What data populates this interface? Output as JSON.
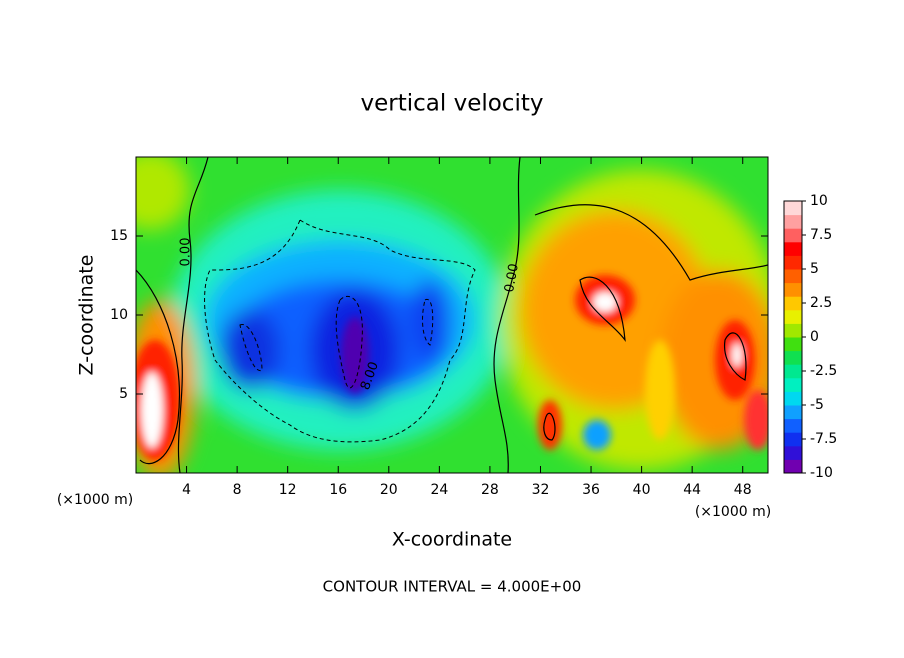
{
  "chart_data": {
    "type": "contour",
    "title": "vertical velocity",
    "x_label": "X-coordinate",
    "y_label": "Z-coordinate",
    "x_unit_labels": [
      "(×1000 m)",
      "(×1000 m)"
    ],
    "footer": "CONTOUR INTERVAL = 4.000E+00",
    "contour_labels": [
      "0.00",
      "0.00",
      "8.00"
    ],
    "xlim": [
      0,
      50
    ],
    "xticks": [
      4,
      8,
      12,
      16,
      20,
      24,
      28,
      32,
      36,
      40,
      44,
      48
    ],
    "ylim": [
      0,
      20
    ],
    "yticks": [
      5,
      10,
      15
    ],
    "clim": [
      -10,
      10
    ],
    "cticks": [
      10,
      7.5,
      5,
      2.5,
      0,
      -2.5,
      -5,
      -7.5,
      -10
    ],
    "colorscale": [
      "#7000b0",
      "#3010d8",
      "#1030f0",
      "#1060ff",
      "#10a0ff",
      "#00d8f0",
      "#00f0c0",
      "#00e890",
      "#10e050",
      "#40e010",
      "#a0e800",
      "#e8f000",
      "#ffc800",
      "#ff9000",
      "#ff6000",
      "#ff2800",
      "#ff0000",
      "#ff6060",
      "#ffa0a0",
      "#ffd8d8"
    ]
  }
}
